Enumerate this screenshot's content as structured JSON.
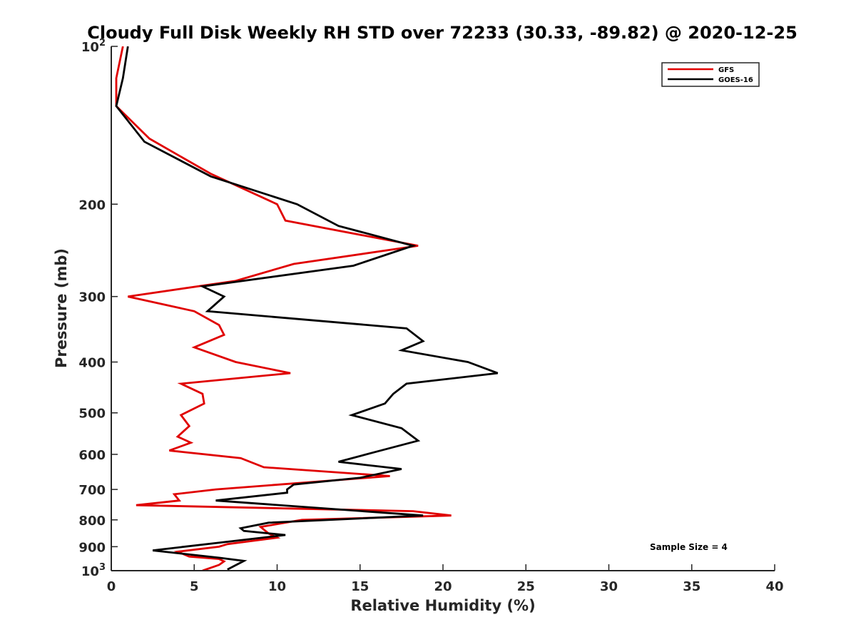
{
  "chart_data": {
    "type": "line",
    "title": "Cloudy Full Disk Weekly RH STD over 72233 (30.33, -89.82) @ 2020-12-25",
    "xlabel": "Relative Humidity (%)",
    "ylabel": "Pressure (mb)",
    "xlim": [
      0,
      40
    ],
    "ylim": [
      100,
      1000
    ],
    "yscale": "log",
    "y_reversed": true,
    "grid": false,
    "legend_position": "top-right",
    "xticks": [
      0,
      5,
      10,
      15,
      20,
      25,
      30,
      35,
      40
    ],
    "xtick_labels": [
      "0",
      "5",
      "10",
      "15",
      "20",
      "25",
      "30",
      "35",
      "40"
    ],
    "yticks": [
      100,
      200,
      300,
      400,
      500,
      600,
      700,
      800,
      900,
      1000
    ],
    "ytick_labels": [
      {
        "base": "10",
        "exp": "2"
      },
      {
        "base": "200",
        "exp": ""
      },
      {
        "base": "300",
        "exp": ""
      },
      {
        "base": "400",
        "exp": ""
      },
      {
        "base": "500",
        "exp": ""
      },
      {
        "base": "600",
        "exp": ""
      },
      {
        "base": "700",
        "exp": ""
      },
      {
        "base": "800",
        "exp": ""
      },
      {
        "base": "900",
        "exp": ""
      },
      {
        "base": "10",
        "exp": "3"
      }
    ],
    "annotation": "Sample Size = 4",
    "series": [
      {
        "name": "GFS",
        "color": "#e00000",
        "points": [
          [
            0.7,
            100
          ],
          [
            0.3,
            115
          ],
          [
            0.3,
            130
          ],
          [
            2.3,
            150
          ],
          [
            6.0,
            175
          ],
          [
            10.0,
            200
          ],
          [
            10.5,
            215
          ],
          [
            18.5,
            240
          ],
          [
            11.0,
            260
          ],
          [
            7.5,
            280
          ],
          [
            1.0,
            300
          ],
          [
            5.0,
            320
          ],
          [
            6.5,
            340
          ],
          [
            6.8,
            355
          ],
          [
            5.0,
            375
          ],
          [
            7.5,
            400
          ],
          [
            10.8,
            420
          ],
          [
            4.2,
            440
          ],
          [
            5.5,
            460
          ],
          [
            5.6,
            480
          ],
          [
            4.2,
            505
          ],
          [
            4.7,
            530
          ],
          [
            4.0,
            555
          ],
          [
            4.8,
            570
          ],
          [
            3.5,
            590
          ],
          [
            7.8,
            610
          ],
          [
            9.2,
            635
          ],
          [
            16.8,
            660
          ],
          [
            6.3,
            700
          ],
          [
            3.8,
            715
          ],
          [
            4.1,
            735
          ],
          [
            1.5,
            750
          ],
          [
            18.2,
            770
          ],
          [
            20.5,
            785
          ],
          [
            11.5,
            800
          ],
          [
            9.0,
            825
          ],
          [
            9.2,
            835
          ],
          [
            9.5,
            850
          ],
          [
            10.0,
            865
          ],
          [
            7.0,
            890
          ],
          [
            6.5,
            900
          ],
          [
            4.0,
            920
          ],
          [
            4.7,
            940
          ],
          [
            6.5,
            950
          ],
          [
            6.8,
            960
          ],
          [
            6.5,
            975
          ],
          [
            5.5,
            1000
          ]
        ]
      },
      {
        "name": "GOES-16",
        "color": "#000000",
        "points": [
          [
            1.0,
            100
          ],
          [
            0.7,
            115
          ],
          [
            0.3,
            130
          ],
          [
            2.0,
            152
          ],
          [
            6.0,
            177
          ],
          [
            11.2,
            200
          ],
          [
            13.7,
            220
          ],
          [
            18.2,
            240
          ],
          [
            14.6,
            262
          ],
          [
            5.5,
            287
          ],
          [
            6.8,
            300
          ],
          [
            5.8,
            320
          ],
          [
            17.8,
            345
          ],
          [
            18.8,
            365
          ],
          [
            17.5,
            380
          ],
          [
            21.5,
            400
          ],
          [
            23.3,
            420
          ],
          [
            17.8,
            440
          ],
          [
            17.0,
            460
          ],
          [
            16.5,
            480
          ],
          [
            14.5,
            505
          ],
          [
            17.5,
            535
          ],
          [
            18.5,
            565
          ],
          [
            15.8,
            595
          ],
          [
            13.7,
            620
          ],
          [
            17.5,
            640
          ],
          [
            15.0,
            665
          ],
          [
            11.0,
            685
          ],
          [
            10.6,
            700
          ],
          [
            10.6,
            710
          ],
          [
            6.3,
            735
          ],
          [
            18.8,
            785
          ],
          [
            9.5,
            810
          ],
          [
            7.8,
            830
          ],
          [
            8.0,
            840
          ],
          [
            10.5,
            855
          ],
          [
            2.5,
            915
          ],
          [
            6.5,
            945
          ],
          [
            8.0,
            958
          ],
          [
            7.0,
            995
          ]
        ]
      }
    ]
  }
}
